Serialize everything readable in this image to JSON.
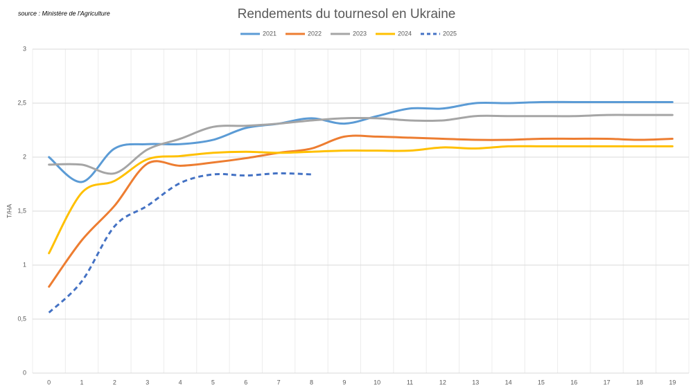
{
  "chart_data": {
    "type": "line",
    "title": "Rendements du tournesol en Ukraine",
    "annotation": "source : Ministère de l'Agriculture",
    "ylabel": "T/HA",
    "categories": [
      "0",
      "1",
      "2",
      "3",
      "4",
      "5",
      "6",
      "7",
      "8",
      "9",
      "10",
      "11",
      "12",
      "13",
      "14",
      "15",
      "16",
      "17",
      "18",
      "19"
    ],
    "ylim": [
      0,
      3
    ],
    "yticks": [
      0,
      {
        "value": 0.5,
        "label": "0,5"
      },
      1,
      {
        "value": 1.5,
        "label": "1,5"
      },
      2,
      {
        "value": 2.5,
        "label": "2,5"
      },
      3
    ],
    "grid": true,
    "legend": "top",
    "smooth": true,
    "series": [
      {
        "name": "2021",
        "color": "#5b9bd5",
        "style": "solid",
        "values": [
          2.0,
          1.77,
          2.08,
          2.12,
          2.12,
          2.16,
          2.27,
          2.31,
          2.36,
          2.31,
          2.38,
          2.45,
          2.45,
          2.5,
          2.5,
          2.51,
          2.51,
          2.51,
          2.51,
          2.51
        ]
      },
      {
        "name": "2022",
        "color": "#ed7d31",
        "style": "solid",
        "values": [
          0.8,
          1.23,
          1.55,
          1.94,
          1.92,
          1.95,
          1.99,
          2.04,
          2.08,
          2.19,
          2.19,
          2.18,
          2.17,
          2.16,
          2.16,
          2.17,
          2.17,
          2.17,
          2.16,
          2.17
        ]
      },
      {
        "name": "2023",
        "color": "#a5a5a5",
        "style": "solid",
        "values": [
          1.93,
          1.93,
          1.85,
          2.07,
          2.17,
          2.28,
          2.29,
          2.31,
          2.34,
          2.36,
          2.36,
          2.34,
          2.34,
          2.38,
          2.38,
          2.38,
          2.38,
          2.39,
          2.39,
          2.39
        ]
      },
      {
        "name": "2024",
        "color": "#ffc000",
        "style": "solid",
        "values": [
          1.11,
          1.67,
          1.78,
          1.98,
          2.01,
          2.04,
          2.05,
          2.04,
          2.05,
          2.06,
          2.06,
          2.06,
          2.09,
          2.08,
          2.1,
          2.1,
          2.1,
          2.1,
          2.1,
          2.1
        ]
      },
      {
        "name": "2025",
        "color": "#4472c4",
        "style": "dashed",
        "values": [
          0.56,
          0.85,
          1.36,
          1.55,
          1.76,
          1.84,
          1.83,
          1.85,
          1.84,
          null,
          null,
          null,
          null,
          null,
          null,
          null,
          null,
          null,
          null,
          null
        ]
      }
    ]
  }
}
